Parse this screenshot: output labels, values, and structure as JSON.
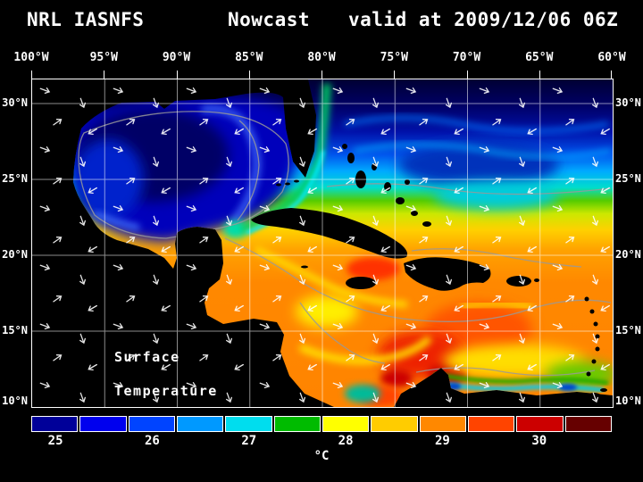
{
  "header": {
    "product": "NRL IASNFS",
    "run_type": "Nowcast",
    "valid_time": "valid at 2009/12/06 06Z"
  },
  "map": {
    "x_ticks": [
      "100°W",
      "95°W",
      "90°W",
      "85°W",
      "80°W",
      "75°W",
      "70°W",
      "65°W",
      "60°W"
    ],
    "y_ticks": [
      "30°N",
      "25°N",
      "20°N",
      "15°N",
      "10°N"
    ],
    "overlay_label_line1": "Surface",
    "overlay_label_line2": "Temperature",
    "land_color": "#000000",
    "grid_color": "#ffffff",
    "vector_color": "#ffffff",
    "contour_color": "#999999"
  },
  "colorbar": {
    "tick_labels": [
      "25",
      "26",
      "27",
      "28",
      "29",
      "30"
    ],
    "unit": "°C",
    "colors": [
      "#000099",
      "#0000ee",
      "#0044ff",
      "#0099ff",
      "#00ddee",
      "#00bb00",
      "#ffff00",
      "#ffcc00",
      "#ff8800",
      "#ff4400",
      "#cc0000",
      "#660000"
    ]
  },
  "chart_data": {
    "type": "heatmap",
    "title": "NRL IASNFS Nowcast valid at 2009/12/06 06Z",
    "variable": "Surface Temperature",
    "unit": "°C",
    "x_ticks": [
      "100°W",
      "95°W",
      "90°W",
      "85°W",
      "80°W",
      "75°W",
      "70°W",
      "65°W",
      "60°W"
    ],
    "y_ticks": [
      "30°N",
      "25°N",
      "20°N",
      "15°N",
      "10°N"
    ],
    "colorbar_tick_values": [
      25,
      26,
      27,
      28,
      29,
      30
    ],
    "colorbar_colors": [
      "#000099",
      "#0000ee",
      "#0044ff",
      "#0099ff",
      "#00ddee",
      "#00bb00",
      "#ffff00",
      "#ffcc00",
      "#ff8800",
      "#ff4400",
      "#cc0000",
      "#660000"
    ],
    "overlays": [
      "white surface-current vectors",
      "gray SST contour lines",
      "5-degree latitude/longitude grid"
    ],
    "regions_read_from_map": [
      {
        "region": "Gulf of Mexico",
        "approx_sst": "25-26 (dark blue)"
      },
      {
        "region": "NW Atlantic north of ~27N",
        "approx_sst": "<=25 (darkest blue)"
      },
      {
        "region": "Bahamas / transition band 22-26N",
        "approx_sst": "27-28.5 (cyan-green-yellow)"
      },
      {
        "region": "Caribbean Sea",
        "approx_sst": "28.5-30+ (orange-red)"
      },
      {
        "region": "Venezuela coastal upwelling strip",
        "approx_sst": "27-28 (green-cyan)"
      }
    ]
  }
}
